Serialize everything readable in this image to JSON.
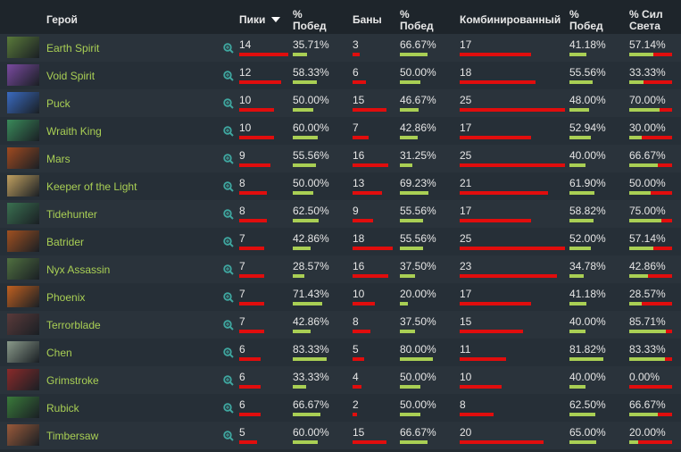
{
  "table": {
    "header": [
      "Герой",
      "Пики",
      "% Побед",
      "Баны",
      "% Побед",
      "Комбинированный",
      "% Побед",
      "% Сил Света"
    ],
    "rows": [
      [
        "Earth Spirit",
        14,
        "35.71%",
        3,
        "66.67%",
        17,
        "41.18%",
        "57.14%"
      ],
      [
        "Void Spirit",
        12,
        "58.33%",
        6,
        "50.00%",
        18,
        "55.56%",
        "33.33%"
      ],
      [
        "Puck",
        10,
        "50.00%",
        15,
        "46.67%",
        25,
        "48.00%",
        "70.00%"
      ],
      [
        "Wraith King",
        10,
        "60.00%",
        7,
        "42.86%",
        17,
        "52.94%",
        "30.00%"
      ],
      [
        "Mars",
        9,
        "55.56%",
        16,
        "31.25%",
        25,
        "40.00%",
        "66.67%"
      ],
      [
        "Keeper of the Light",
        8,
        "50.00%",
        13,
        "69.23%",
        21,
        "61.90%",
        "50.00%"
      ],
      [
        "Tidehunter",
        8,
        "62.50%",
        9,
        "55.56%",
        17,
        "58.82%",
        "75.00%"
      ],
      [
        "Batrider",
        7,
        "42.86%",
        18,
        "55.56%",
        25,
        "52.00%",
        "57.14%"
      ],
      [
        "Nyx Assassin",
        7,
        "28.57%",
        16,
        "37.50%",
        23,
        "34.78%",
        "42.86%"
      ],
      [
        "Phoenix",
        7,
        "71.43%",
        10,
        "20.00%",
        17,
        "41.18%",
        "28.57%"
      ],
      [
        "Terrorblade",
        7,
        "42.86%",
        8,
        "37.50%",
        15,
        "40.00%",
        "85.71%"
      ],
      [
        "Chen",
        6,
        "83.33%",
        5,
        "80.00%",
        11,
        "81.82%",
        "83.33%"
      ],
      [
        "Grimstroke",
        6,
        "33.33%",
        4,
        "50.00%",
        10,
        "40.00%",
        "0.00%"
      ],
      [
        "Rubick",
        6,
        "66.67%",
        2,
        "50.00%",
        8,
        "62.50%",
        "66.67%"
      ],
      [
        "Timbersaw",
        5,
        "60.00%",
        15,
        "66.67%",
        20,
        "65.00%",
        "20.00%"
      ]
    ]
  }
}
